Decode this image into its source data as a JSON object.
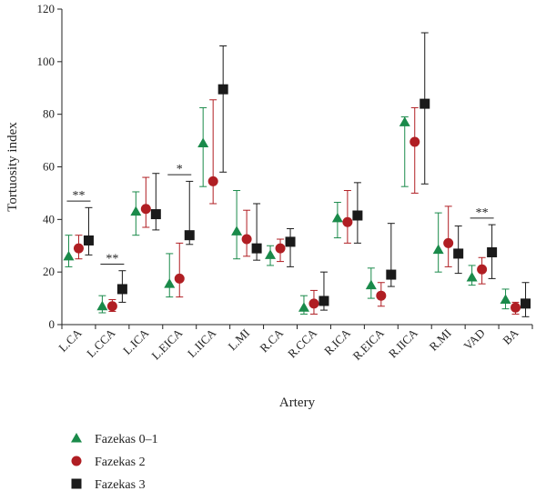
{
  "chart_data": {
    "type": "scatter",
    "title": "",
    "xlabel": "Artery",
    "ylabel": "Tortuosity index",
    "ylim": [
      0,
      120
    ],
    "yticks": [
      0,
      20,
      40,
      60,
      80,
      100,
      120
    ],
    "grid": false,
    "legend_position": "bottom-left",
    "categories": [
      "L.CA",
      "L.CCA",
      "L.ICA",
      "L.EICA",
      "L.IICA",
      "L.MI",
      "R.CA",
      "R.CCA",
      "R.ICA",
      "R.EICA",
      "R.IICA",
      "R.MI",
      "VAD",
      "BA"
    ],
    "series": [
      {
        "name": "Fazekas 0–1",
        "marker": "triangle",
        "color": "#1a8a4a",
        "values": [
          26,
          7,
          43,
          15.5,
          69,
          35.5,
          26.5,
          6.5,
          40.5,
          15,
          77,
          28.5,
          18,
          9.5
        ],
        "error_low": [
          22,
          4.5,
          34,
          10.5,
          52.5,
          25,
          22.5,
          4,
          33,
          10,
          52.5,
          20,
          15,
          6
        ],
        "error_high": [
          34,
          11,
          50.5,
          27,
          82.5,
          51,
          30,
          11,
          46.5,
          21.5,
          79,
          42.5,
          22.5,
          13.5
        ]
      },
      {
        "name": "Fazekas 2",
        "marker": "circle",
        "color": "#b01e23",
        "values": [
          29,
          7,
          44,
          17.5,
          54.5,
          32.5,
          29,
          8,
          39,
          11,
          69.5,
          31,
          21,
          6.5
        ],
        "error_low": [
          25,
          5,
          37,
          10.5,
          46,
          26,
          24,
          4,
          31,
          7,
          50,
          22,
          15.5,
          4
        ],
        "error_high": [
          34,
          9.5,
          56,
          31,
          85.5,
          43.5,
          32.5,
          13,
          51,
          16,
          82.5,
          45,
          25.5,
          8.5
        ]
      },
      {
        "name": "Fazekas 3",
        "marker": "square",
        "color": "#1a1a1a",
        "values": [
          32,
          13.5,
          42,
          34,
          89.5,
          29,
          31.5,
          9,
          41.5,
          19,
          84,
          27,
          27.5,
          8
        ],
        "error_low": [
          26.5,
          8.5,
          36,
          30.5,
          58,
          24.5,
          22,
          5.5,
          31,
          14.5,
          53.5,
          19.5,
          17.5,
          3
        ],
        "error_high": [
          44.5,
          20.5,
          57.5,
          54.5,
          106,
          46,
          36.5,
          20,
          54,
          38.5,
          111,
          37.5,
          38,
          16
        ]
      }
    ],
    "annotations": [
      {
        "label": "**",
        "from": "L.CA",
        "to": "L.CA",
        "y": 47
      },
      {
        "label": "**",
        "from": "L.CCA",
        "to": "L.CCA",
        "y": 23
      },
      {
        "label": "*",
        "from": "L.EICA",
        "to": "L.EICA",
        "y": 57
      },
      {
        "label": "**",
        "from": "VAD",
        "to": "VAD",
        "y": 40.5
      }
    ]
  }
}
